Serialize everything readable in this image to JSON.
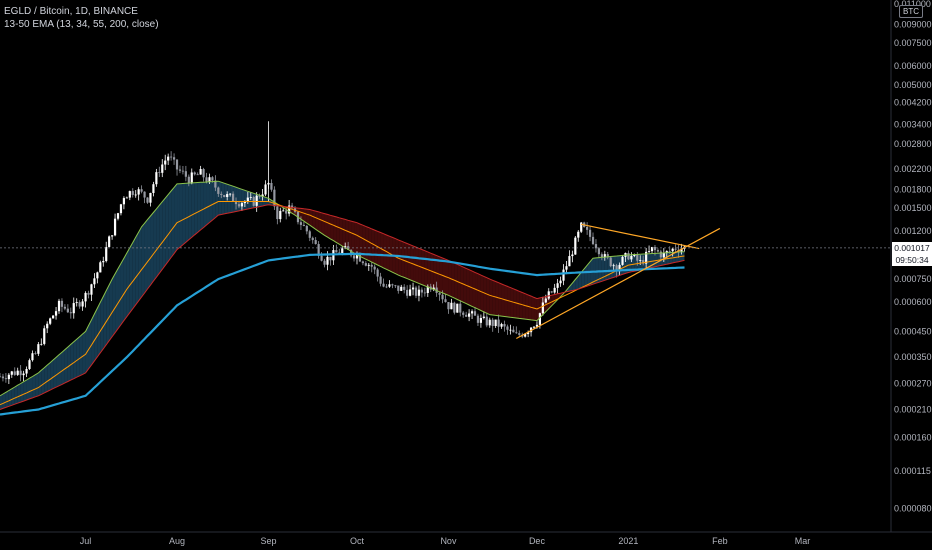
{
  "header": {
    "title": "EGLD / Bitcoin, 1D, BINANCE",
    "study": "13-50 EMA (13, 34, 55, 200, close)"
  },
  "price_scale": {
    "currency": "BTC",
    "last_price": "0.001017",
    "countdown": "09:50:34"
  },
  "colors": {
    "background": "#000000",
    "candle_up": "#ffffff",
    "candle_down": "#9598a1",
    "ema13": "#8bc34a",
    "ema34": "#ff9800",
    "ema55": "#c62828",
    "ema200": "#26a0d6",
    "fill_bull": "#1e4d6b",
    "fill_bear": "#5a0f0f",
    "trendline": "#ffa726"
  },
  "chart_data": {
    "type": "line",
    "title": "EGLD / Bitcoin, 1D, BINANCE",
    "y_scale": "log",
    "ylim": [
      7e-05,
      0.011
    ],
    "y_ticks": [
      "0.011000",
      "0.009000",
      "0.007500",
      "0.006000",
      "0.005000",
      "0.004200",
      "0.003400",
      "0.002800",
      "0.002200",
      "0.001800",
      "0.001500",
      "0.001200",
      "0.001000",
      "0.000750",
      "0.000600",
      "0.000450",
      "0.000350",
      "0.000270",
      "0.000210",
      "0.000160",
      "0.000115",
      "0.000080"
    ],
    "x_ticks": [
      "Jul",
      "Aug",
      "Sep",
      "Oct",
      "Nov",
      "Dec",
      "2021",
      "Feb",
      "Mar"
    ],
    "x_tick_dates": [
      "2020-07-01",
      "2020-08-01",
      "2020-09-01",
      "2020-10-01",
      "2020-11-01",
      "2020-12-01",
      "2021-01-01",
      "2021-02-01",
      "2021-03-01"
    ],
    "xlim": [
      "2020-06-02",
      "2021-03-31"
    ],
    "price_path": [
      [
        "2020-06-02",
        0.00029
      ],
      [
        "2020-06-10",
        0.00031
      ],
      [
        "2020-06-14",
        0.00036
      ],
      [
        "2020-06-18",
        0.00048
      ],
      [
        "2020-06-22",
        0.00058
      ],
      [
        "2020-06-26",
        0.00055
      ],
      [
        "2020-07-01",
        0.00064
      ],
      [
        "2020-07-06",
        0.00085
      ],
      [
        "2020-07-10",
        0.0012
      ],
      [
        "2020-07-14",
        0.0017
      ],
      [
        "2020-07-18",
        0.0018
      ],
      [
        "2020-07-22",
        0.00165
      ],
      [
        "2020-07-26",
        0.0022
      ],
      [
        "2020-07-29",
        0.0025
      ],
      [
        "2020-08-01",
        0.0022
      ],
      [
        "2020-08-05",
        0.002
      ],
      [
        "2020-08-09",
        0.0021
      ],
      [
        "2020-08-13",
        0.0019
      ],
      [
        "2020-08-17",
        0.0017
      ],
      [
        "2020-08-22",
        0.0016
      ],
      [
        "2020-08-27",
        0.0016
      ],
      [
        "2020-09-01",
        0.0019
      ],
      [
        "2020-09-04",
        0.0014
      ],
      [
        "2020-09-08",
        0.0015
      ],
      [
        "2020-09-14",
        0.0012
      ],
      [
        "2020-09-20",
        0.0009
      ],
      [
        "2020-09-26",
        0.001
      ],
      [
        "2020-10-01",
        0.00095
      ],
      [
        "2020-10-06",
        0.00085
      ],
      [
        "2020-10-10",
        0.0007
      ],
      [
        "2020-10-16",
        0.00068
      ],
      [
        "2020-10-22",
        0.00065
      ],
      [
        "2020-10-27",
        0.00072
      ],
      [
        "2020-11-01",
        0.00058
      ],
      [
        "2020-11-06",
        0.00055
      ],
      [
        "2020-11-12",
        0.0005
      ],
      [
        "2020-11-18",
        0.00048
      ],
      [
        "2020-11-24",
        0.00043
      ],
      [
        "2020-11-27",
        0.00045
      ],
      [
        "2020-12-01",
        0.0005
      ],
      [
        "2020-12-04",
        0.00062
      ],
      [
        "2020-12-08",
        0.0007
      ],
      [
        "2020-12-12",
        0.00092
      ],
      [
        "2020-12-16",
        0.00125
      ],
      [
        "2020-12-20",
        0.0011
      ],
      [
        "2020-12-24",
        0.00092
      ],
      [
        "2020-12-28",
        0.00085
      ],
      [
        "2021-01-01",
        0.00095
      ],
      [
        "2021-01-05",
        0.00088
      ],
      [
        "2021-01-09",
        0.001
      ],
      [
        "2021-01-13",
        0.00095
      ],
      [
        "2021-01-17",
        0.00102
      ],
      [
        "2021-01-20",
        0.001017
      ]
    ],
    "series": [
      {
        "name": "13",
        "values": [
          [
            "2020-06-02",
            0.00024
          ],
          [
            "2020-06-15",
            0.0003
          ],
          [
            "2020-07-01",
            0.00045
          ],
          [
            "2020-07-10",
            0.00075
          ],
          [
            "2020-07-20",
            0.00125
          ],
          [
            "2020-08-01",
            0.0019
          ],
          [
            "2020-08-15",
            0.00195
          ],
          [
            "2020-09-01",
            0.00165
          ],
          [
            "2020-09-10",
            0.0014
          ],
          [
            "2020-09-20",
            0.00115
          ],
          [
            "2020-10-01",
            0.00095
          ],
          [
            "2020-10-15",
            0.00078
          ],
          [
            "2020-11-01",
            0.00064
          ],
          [
            "2020-11-15",
            0.00053
          ],
          [
            "2020-12-01",
            0.0005
          ],
          [
            "2020-12-10",
            0.00065
          ],
          [
            "2020-12-20",
            0.00092
          ],
          [
            "2021-01-01",
            0.00095
          ],
          [
            "2021-01-20",
            0.00098
          ]
        ]
      },
      {
        "name": "34",
        "values": [
          [
            "2020-06-02",
            0.00022
          ],
          [
            "2020-06-15",
            0.00026
          ],
          [
            "2020-07-01",
            0.00036
          ],
          [
            "2020-07-15",
            0.00068
          ],
          [
            "2020-08-01",
            0.0013
          ],
          [
            "2020-08-15",
            0.0016
          ],
          [
            "2020-09-01",
            0.0016
          ],
          [
            "2020-09-15",
            0.0014
          ],
          [
            "2020-10-01",
            0.00115
          ],
          [
            "2020-10-15",
            0.00092
          ],
          [
            "2020-11-01",
            0.00076
          ],
          [
            "2020-11-15",
            0.00064
          ],
          [
            "2020-12-01",
            0.00056
          ],
          [
            "2020-12-15",
            0.00068
          ],
          [
            "2021-01-01",
            0.00086
          ],
          [
            "2021-01-20",
            0.00094
          ]
        ]
      },
      {
        "name": "55",
        "values": [
          [
            "2020-06-02",
            0.00021
          ],
          [
            "2020-06-15",
            0.00024
          ],
          [
            "2020-07-01",
            0.0003
          ],
          [
            "2020-07-15",
            0.00052
          ],
          [
            "2020-08-01",
            0.001
          ],
          [
            "2020-08-15",
            0.0014
          ],
          [
            "2020-09-01",
            0.00155
          ],
          [
            "2020-09-15",
            0.00148
          ],
          [
            "2020-10-01",
            0.0013
          ],
          [
            "2020-10-15",
            0.0011
          ],
          [
            "2020-11-01",
            0.0009
          ],
          [
            "2020-11-15",
            0.00075
          ],
          [
            "2020-12-01",
            0.00062
          ],
          [
            "2020-12-15",
            0.00068
          ],
          [
            "2021-01-01",
            0.0008
          ],
          [
            "2021-01-20",
            0.0009
          ]
        ]
      },
      {
        "name": "200",
        "values": [
          [
            "2020-06-02",
            0.0002
          ],
          [
            "2020-06-15",
            0.00021
          ],
          [
            "2020-07-01",
            0.00024
          ],
          [
            "2020-07-15",
            0.00035
          ],
          [
            "2020-08-01",
            0.00058
          ],
          [
            "2020-08-15",
            0.00075
          ],
          [
            "2020-09-01",
            0.0009
          ],
          [
            "2020-09-15",
            0.00095
          ],
          [
            "2020-10-01",
            0.00096
          ],
          [
            "2020-10-15",
            0.00094
          ],
          [
            "2020-11-01",
            0.00089
          ],
          [
            "2020-11-15",
            0.00083
          ],
          [
            "2020-12-01",
            0.00078
          ],
          [
            "2020-12-15",
            0.0008
          ],
          [
            "2021-01-01",
            0.00082
          ],
          [
            "2021-01-20",
            0.00084
          ]
        ]
      }
    ],
    "annotations": [
      {
        "type": "trendline",
        "from": [
          "2020-11-24",
          0.00042
        ],
        "to": [
          "2021-02-01",
          0.00123
        ]
      },
      {
        "type": "trendline",
        "from": [
          "2020-12-16",
          0.00128
        ],
        "to": [
          "2021-01-25",
          0.00101
        ]
      }
    ],
    "grid": false,
    "legend": "none"
  }
}
